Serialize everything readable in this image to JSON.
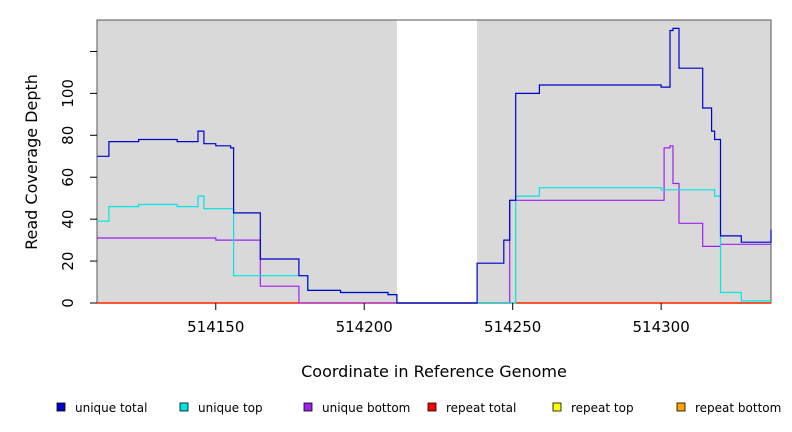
{
  "chart_data": {
    "type": "line",
    "xlabel": "Coordinate in Reference Genome",
    "ylabel": "Read Coverage Depth",
    "xlim": [
      514110,
      514337
    ],
    "ylim": [
      0,
      135
    ],
    "x_ticks": [
      514150,
      514200,
      514250,
      514300
    ],
    "y_ticks": [
      0,
      20,
      40,
      60,
      80,
      100
    ],
    "shaded_ranges": [
      [
        514110,
        514211
      ],
      [
        514238,
        514337
      ]
    ],
    "legend_position": "bottom",
    "series": [
      {
        "name": "unique total",
        "color": "#0000cc",
        "x": [
          514110,
          514114,
          514124,
          514137,
          514144,
          514146,
          514150,
          514155,
          514156,
          514165,
          514178,
          514181,
          514192,
          514208,
          514211,
          514238,
          514247,
          514249,
          514251,
          514259,
          514300,
          514303,
          514304,
          514306,
          514314,
          514317,
          514318,
          514320,
          514327,
          514337
        ],
        "y": [
          70,
          77,
          78,
          77,
          82,
          76,
          75,
          74,
          43,
          21,
          13,
          6,
          5,
          4,
          0,
          19,
          30,
          49,
          100,
          104,
          103,
          130,
          131,
          112,
          93,
          82,
          78,
          32,
          29,
          35
        ]
      },
      {
        "name": "unique top",
        "color": "#00e5e5",
        "x": [
          514110,
          514114,
          514124,
          514137,
          514144,
          514146,
          514156,
          514178,
          514181,
          514192,
          514208,
          514211,
          514251,
          514259,
          514300,
          514318,
          514320,
          514327,
          514337
        ],
        "y": [
          39,
          46,
          47,
          46,
          51,
          45,
          13,
          13,
          6,
          5,
          4,
          0,
          51,
          55,
          54,
          51,
          5,
          1,
          1
        ]
      },
      {
        "name": "unique bottom",
        "color": "#a020f0",
        "x": [
          514110,
          514150,
          514165,
          514178,
          514249,
          514301,
          514303,
          514304,
          514306,
          514314,
          514320,
          514337
        ],
        "y": [
          31,
          30,
          8,
          0,
          49,
          74,
          75,
          57,
          38,
          27,
          28,
          28
        ]
      },
      {
        "name": "repeat total",
        "color": "#ff0000",
        "x": [
          514110,
          514337
        ],
        "y": [
          0,
          0
        ]
      },
      {
        "name": "repeat top",
        "color": "#ffff00",
        "x": [
          514110,
          514337
        ],
        "y": [
          0,
          0
        ]
      },
      {
        "name": "repeat bottom",
        "color": "#ffa500",
        "x": [
          514110,
          514337
        ],
        "y": [
          0,
          0
        ]
      }
    ]
  }
}
